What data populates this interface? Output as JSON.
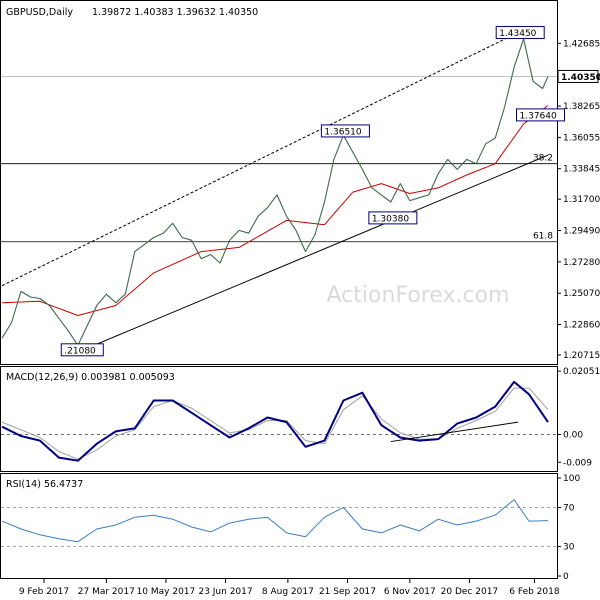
{
  "header": {
    "symbol": "GBPUSD,Daily",
    "ohlc": "1.39872 1.40383 1.39632 1.40350"
  },
  "watermark": "ActionForex.com",
  "chart_data": [
    {
      "type": "line",
      "title": "GBPUSD,Daily",
      "subtitle": "1.39872 1.40383 1.39632 1.40350",
      "x_start": "2017-01-09",
      "x_end": "2018-02-16",
      "ylim": [
        1.2015,
        1.4433
      ],
      "y_ticks": [
        "1.42685",
        "1.40350",
        "1.38265",
        "1.36055",
        "1.33845",
        "1.31700",
        "1.29490",
        "1.27280",
        "1.25070",
        "1.22860",
        "1.20715"
      ],
      "y_tick_values": [
        1.42685,
        1.4035,
        1.38265,
        1.36055,
        1.33845,
        1.317,
        1.2949,
        1.2728,
        1.2507,
        1.2286,
        1.20715
      ],
      "current_value": 1.4035,
      "series": [
        {
          "name": "",
          "kind": "price",
          "color": "#3f6a4a",
          "points": [
            [
              "2017-01-09",
              1.219
            ],
            [
              "2017-01-16",
              1.23
            ],
            [
              "2017-01-23",
              1.252
            ],
            [
              "2017-01-30",
              1.248
            ],
            [
              "2017-02-06",
              1.247
            ],
            [
              "2017-02-13",
              1.242
            ],
            [
              "2017-02-20",
              1.233
            ],
            [
              "2017-02-27",
              1.224
            ],
            [
              "2017-03-06",
              1.214
            ],
            [
              "2017-03-13",
              1.228
            ],
            [
              "2017-03-20",
              1.242
            ],
            [
              "2017-03-27",
              1.25
            ],
            [
              "2017-04-03",
              1.244
            ],
            [
              "2017-04-10",
              1.25
            ],
            [
              "2017-04-17",
              1.28
            ],
            [
              "2017-04-24",
              1.285
            ],
            [
              "2017-05-01",
              1.29
            ],
            [
              "2017-05-08",
              1.293
            ],
            [
              "2017-05-15",
              1.3
            ],
            [
              "2017-05-22",
              1.29
            ],
            [
              "2017-05-29",
              1.288
            ],
            [
              "2017-06-05",
              1.275
            ],
            [
              "2017-06-12",
              1.278
            ],
            [
              "2017-06-19",
              1.272
            ],
            [
              "2017-06-26",
              1.288
            ],
            [
              "2017-07-03",
              1.295
            ],
            [
              "2017-07-10",
              1.293
            ],
            [
              "2017-07-17",
              1.305
            ],
            [
              "2017-07-24",
              1.311
            ],
            [
              "2017-07-31",
              1.32
            ],
            [
              "2017-08-07",
              1.305
            ],
            [
              "2017-08-14",
              1.295
            ],
            [
              "2017-08-21",
              1.28
            ],
            [
              "2017-08-28",
              1.292
            ],
            [
              "2017-09-04",
              1.315
            ],
            [
              "2017-09-11",
              1.345
            ],
            [
              "2017-09-18",
              1.362
            ],
            [
              "2017-09-25",
              1.35
            ],
            [
              "2017-10-02",
              1.338
            ],
            [
              "2017-10-09",
              1.325
            ],
            [
              "2017-10-16",
              1.32
            ],
            [
              "2017-10-23",
              1.315
            ],
            [
              "2017-10-30",
              1.328
            ],
            [
              "2017-11-06",
              1.316
            ],
            [
              "2017-11-13",
              1.318
            ],
            [
              "2017-11-20",
              1.32
            ],
            [
              "2017-11-27",
              1.335
            ],
            [
              "2017-12-04",
              1.345
            ],
            [
              "2017-12-11",
              1.338
            ],
            [
              "2017-12-18",
              1.345
            ],
            [
              "2017-12-25",
              1.342
            ],
            [
              "2018-01-01",
              1.356
            ],
            [
              "2018-01-08",
              1.36
            ],
            [
              "2018-01-15",
              1.382
            ],
            [
              "2018-01-22",
              1.41
            ],
            [
              "2018-01-29",
              1.43
            ],
            [
              "2018-02-05",
              1.4
            ],
            [
              "2018-02-12",
              1.395
            ],
            [
              "2018-02-16",
              1.4035
            ]
          ]
        },
        {
          "name": "",
          "kind": "moving-average",
          "color": "#cc0000",
          "points": [
            [
              "2017-01-09",
              1.244
            ],
            [
              "2017-02-06",
              1.245
            ],
            [
              "2017-03-06",
              1.235
            ],
            [
              "2017-04-03",
              1.242
            ],
            [
              "2017-05-01",
              1.265
            ],
            [
              "2017-06-05",
              1.28
            ],
            [
              "2017-07-03",
              1.283
            ],
            [
              "2017-08-07",
              1.302
            ],
            [
              "2017-09-04",
              1.299
            ],
            [
              "2017-09-25",
              1.322
            ],
            [
              "2017-10-16",
              1.328
            ],
            [
              "2017-11-06",
              1.321
            ],
            [
              "2017-11-27",
              1.325
            ],
            [
              "2017-12-18",
              1.334
            ],
            [
              "2018-01-08",
              1.342
            ],
            [
              "2018-01-29",
              1.37
            ],
            [
              "2018-02-16",
              1.383
            ]
          ]
        }
      ],
      "annotations": [
        {
          "text": "1.43450",
          "x": "2018-01-25",
          "y": 1.4345
        },
        {
          "text": "1.36510",
          "x": "2017-09-18",
          "y": 1.3651
        },
        {
          "text": "1.30380",
          "x": "2017-10-23",
          "y": 1.3038
        },
        {
          "text": "1.37640",
          "x": "2018-02-09",
          "y": 1.3764
        },
        {
          "text": ".21080",
          "x": "2017-03-10",
          "y": 1.2108
        }
      ],
      "levels": [
        {
          "label": "38.2",
          "y": 1.342
        },
        {
          "label": "61.8",
          "y": 1.287
        }
      ],
      "trendlines": [
        {
          "style": "solid",
          "from": [
            "2017-03-10",
            1.2108
          ],
          "to": [
            "2018-02-16",
            1.348
          ]
        },
        {
          "style": "dashed",
          "from": [
            "2017-01-09",
            1.256
          ],
          "to": [
            "2018-01-25",
            1.4345
          ]
        }
      ],
      "grid": false
    },
    {
      "type": "line",
      "title": "MACD(12,26,9) 0.003981 0.005093",
      "ylim": [
        -0.0115,
        0.0215
      ],
      "y_ticks": [
        "0.02051",
        "0.00",
        "-0.009"
      ],
      "y_tick_values": [
        0.02051,
        0.0,
        -0.009
      ],
      "series": [
        {
          "name": "",
          "kind": "macd",
          "color": "#000080",
          "points": [
            [
              "2017-01-09",
              0.0025
            ],
            [
              "2017-01-23",
              -0.0005
            ],
            [
              "2017-02-06",
              -0.002
            ],
            [
              "2017-02-20",
              -0.0075
            ],
            [
              "2017-03-06",
              -0.0085
            ],
            [
              "2017-03-20",
              -0.003
            ],
            [
              "2017-04-03",
              0.001
            ],
            [
              "2017-04-17",
              0.002
            ],
            [
              "2017-05-01",
              0.011
            ],
            [
              "2017-05-15",
              0.011
            ],
            [
              "2017-05-29",
              0.007
            ],
            [
              "2017-06-12",
              0.003
            ],
            [
              "2017-06-26",
              -0.001
            ],
            [
              "2017-07-10",
              0.002
            ],
            [
              "2017-07-24",
              0.0055
            ],
            [
              "2017-08-07",
              0.004
            ],
            [
              "2017-08-21",
              -0.004
            ],
            [
              "2017-09-04",
              -0.002
            ],
            [
              "2017-09-18",
              0.011
            ],
            [
              "2017-10-02",
              0.0135
            ],
            [
              "2017-10-16",
              0.003
            ],
            [
              "2017-10-30",
              -0.001
            ],
            [
              "2017-11-13",
              -0.002
            ],
            [
              "2017-11-27",
              -0.0015
            ],
            [
              "2017-12-11",
              0.0035
            ],
            [
              "2017-12-25",
              0.0055
            ],
            [
              "2018-01-08",
              0.009
            ],
            [
              "2018-01-22",
              0.017
            ],
            [
              "2018-02-02",
              0.013
            ],
            [
              "2018-02-16",
              0.004
            ]
          ]
        },
        {
          "name": "",
          "kind": "signal",
          "color": "#a0a0a0",
          "points": [
            [
              "2017-01-09",
              0.004
            ],
            [
              "2017-01-23",
              0.0015
            ],
            [
              "2017-02-06",
              -0.001
            ],
            [
              "2017-02-20",
              -0.0055
            ],
            [
              "2017-03-06",
              -0.008
            ],
            [
              "2017-03-20",
              -0.005
            ],
            [
              "2017-04-03",
              -0.0005
            ],
            [
              "2017-04-17",
              0.0015
            ],
            [
              "2017-05-01",
              0.009
            ],
            [
              "2017-05-15",
              0.011
            ],
            [
              "2017-05-29",
              0.0085
            ],
            [
              "2017-06-12",
              0.0045
            ],
            [
              "2017-06-26",
              0.0005
            ],
            [
              "2017-07-10",
              0.0015
            ],
            [
              "2017-07-24",
              0.0045
            ],
            [
              "2017-08-07",
              0.0045
            ],
            [
              "2017-08-21",
              -0.002
            ],
            [
              "2017-09-04",
              -0.003
            ],
            [
              "2017-09-18",
              0.008
            ],
            [
              "2017-10-02",
              0.0125
            ],
            [
              "2017-10-16",
              0.005
            ],
            [
              "2017-10-30",
              0.0005
            ],
            [
              "2017-11-13",
              -0.0015
            ],
            [
              "2017-11-27",
              -0.0015
            ],
            [
              "2017-12-11",
              0.002
            ],
            [
              "2017-12-25",
              0.0045
            ],
            [
              "2018-01-08",
              0.0075
            ],
            [
              "2018-01-22",
              0.015
            ],
            [
              "2018-02-02",
              0.015
            ],
            [
              "2018-02-16",
              0.008
            ]
          ]
        }
      ],
      "trendlines": [
        {
          "style": "solid",
          "from": [
            "2017-10-23",
            -0.0023
          ],
          "to": [
            "2018-01-25",
            0.004
          ]
        }
      ],
      "zero_line": true
    },
    {
      "type": "line",
      "title": "RSI(14) 56.4737",
      "ylim": [
        0,
        100
      ],
      "y_ticks": [
        "100",
        "70",
        "30",
        "0"
      ],
      "y_tick_values": [
        100,
        70,
        30,
        0
      ],
      "levels": [
        70,
        30
      ],
      "series": [
        {
          "name": "",
          "kind": "rsi",
          "color": "#3a7fc2",
          "points": [
            [
              "2017-01-09",
              56
            ],
            [
              "2017-01-23",
              48
            ],
            [
              "2017-02-06",
              42
            ],
            [
              "2017-02-20",
              38
            ],
            [
              "2017-03-06",
              35
            ],
            [
              "2017-03-20",
              48
            ],
            [
              "2017-04-03",
              52
            ],
            [
              "2017-04-17",
              60
            ],
            [
              "2017-05-01",
              62
            ],
            [
              "2017-05-15",
              58
            ],
            [
              "2017-05-29",
              50
            ],
            [
              "2017-06-12",
              45
            ],
            [
              "2017-06-26",
              54
            ],
            [
              "2017-07-10",
              58
            ],
            [
              "2017-07-24",
              60
            ],
            [
              "2017-08-07",
              44
            ],
            [
              "2017-08-21",
              40
            ],
            [
              "2017-09-04",
              60
            ],
            [
              "2017-09-18",
              70
            ],
            [
              "2017-10-02",
              48
            ],
            [
              "2017-10-16",
              44
            ],
            [
              "2017-10-30",
              52
            ],
            [
              "2017-11-13",
              46
            ],
            [
              "2017-11-27",
              58
            ],
            [
              "2017-12-11",
              52
            ],
            [
              "2017-12-25",
              56
            ],
            [
              "2018-01-08",
              62
            ],
            [
              "2018-01-22",
              78
            ],
            [
              "2018-02-02",
              56
            ],
            [
              "2018-02-16",
              56.5
            ]
          ]
        }
      ]
    }
  ],
  "x_axis_labels": [
    {
      "label": "9 Feb 2017",
      "date": "2017-02-09"
    },
    {
      "label": "27 Mar 2017",
      "date": "2017-03-27"
    },
    {
      "label": "10 May 2017",
      "date": "2017-05-10"
    },
    {
      "label": "23 Jun 2017",
      "date": "2017-06-23"
    },
    {
      "label": "8 Aug 2017",
      "date": "2017-08-08"
    },
    {
      "label": "21 Sep 2017",
      "date": "2017-09-21"
    },
    {
      "label": "6 Nov 2017",
      "date": "2017-11-06"
    },
    {
      "label": "20 Dec 2017",
      "date": "2017-12-20"
    },
    {
      "label": "6 Feb 2018",
      "date": "2018-02-06"
    }
  ]
}
